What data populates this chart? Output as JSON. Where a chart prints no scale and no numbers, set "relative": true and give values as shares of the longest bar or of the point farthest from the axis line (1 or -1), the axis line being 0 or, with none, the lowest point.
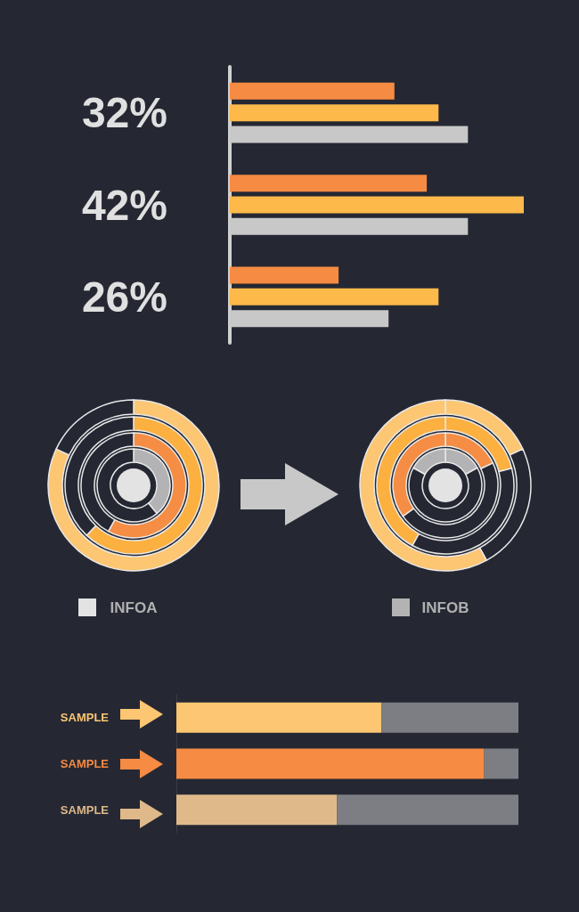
{
  "chart_data": [
    {
      "type": "bar",
      "orientation": "horizontal",
      "relative": true,
      "categories": [
        "32%",
        "42%",
        "26%"
      ],
      "series": [
        {
          "color": "#f68b43",
          "values": [
            0.56,
            0.67,
            0.37
          ]
        },
        {
          "color": "#fdb94a",
          "values": [
            0.71,
            1,
            0.71
          ]
        },
        {
          "color": "#c8c8c8",
          "values": [
            0.81,
            0.81,
            0.54
          ]
        }
      ]
    },
    {
      "type": "donut",
      "title": "INFOA",
      "categories": [
        null,
        null
      ],
      "values": [
        82,
        18
      ],
      "colors": [
        "#fcc672",
        "#252833"
      ]
    },
    {
      "type": "donut",
      "categories": [
        null,
        null
      ],
      "values": [
        62,
        38
      ],
      "colors": [
        "#fbb040",
        "#252833"
      ]
    },
    {
      "type": "donut",
      "categories": [
        null,
        null
      ],
      "values": [
        58,
        42
      ],
      "colors": [
        "#f58d44",
        "#252833"
      ]
    },
    {
      "type": "donut",
      "categories": [
        null,
        null
      ],
      "values": [
        39,
        61
      ],
      "colors": [
        "#b3b3b5",
        "#252833"
      ]
    },
    {
      "type": "donut",
      "title": "INFOB",
      "categories": [
        null,
        null,
        null
      ],
      "values": [
        18,
        24,
        58
      ],
      "colors": [
        "#fcc672",
        "#252833",
        "#fcc672"
      ]
    },
    {
      "type": "donut",
      "categories": [
        null,
        null,
        null
      ],
      "values": [
        21,
        37,
        42
      ],
      "colors": [
        "#fbb040",
        "#252833",
        "#fbb040"
      ]
    },
    {
      "type": "donut",
      "categories": [
        null,
        null,
        null
      ],
      "values": [
        18,
        47,
        35
      ],
      "colors": [
        "#f58d44",
        "#252833",
        "#f58d44"
      ]
    },
    {
      "type": "donut",
      "categories": [
        null,
        null,
        null
      ],
      "values": [
        17,
        66,
        17
      ],
      "colors": [
        "#b3b3b5",
        "#252833",
        "#b3b3b5"
      ]
    },
    {
      "type": "bar",
      "orientation": "horizontal",
      "relative": true,
      "stacked": true,
      "categories": [
        "SAMPLE",
        "SAMPLE",
        "SAMPLE"
      ],
      "series": [
        {
          "colors": [
            "#fcc672",
            "#f68b43",
            "#dfb98a"
          ],
          "values": [
            0.6,
            0.9,
            0.47
          ]
        },
        {
          "color": "#7d7e83",
          "values": [
            0.4,
            0.1,
            0.53
          ]
        }
      ]
    }
  ]
}
